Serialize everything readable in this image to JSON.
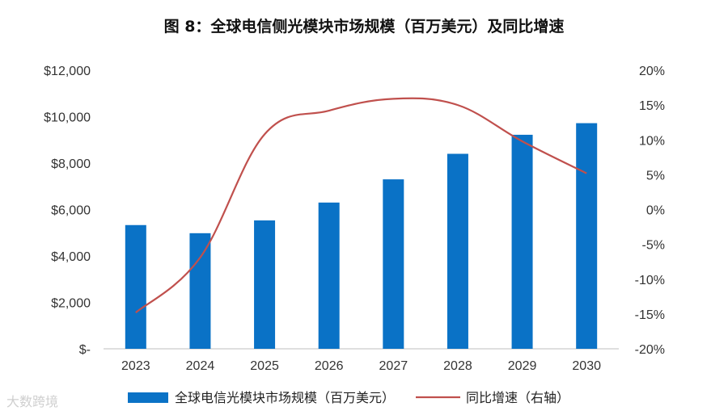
{
  "chart_data": {
    "type": "bar",
    "title": "图 8：全球电信侧光模块市场规模（百万美元）及同比增速",
    "categories": [
      "2023",
      "2024",
      "2025",
      "2026",
      "2027",
      "2028",
      "2029",
      "2030"
    ],
    "series": [
      {
        "name": "全球电信光模块市场规模（百万美元）",
        "type": "bar",
        "axis": "left",
        "color": "#0a72c6",
        "values": [
          5330,
          4980,
          5530,
          6300,
          7300,
          8400,
          9220,
          9720
        ]
      },
      {
        "name": "同比增速（右轴）",
        "type": "line",
        "axis": "right",
        "color": "#c0504d",
        "values": [
          -14.8,
          -6.9,
          10.8,
          14.2,
          15.9,
          15.0,
          9.8,
          5.2
        ]
      }
    ],
    "y_left": {
      "min": 0,
      "max": 12000,
      "tick_labels": [
        "$-",
        "$2,000",
        "$4,000",
        "$6,000",
        "$8,000",
        "$10,000",
        "$12,000"
      ],
      "tick_values": [
        0,
        2000,
        4000,
        6000,
        8000,
        10000,
        12000
      ]
    },
    "y_right": {
      "min": -20,
      "max": 20,
      "tick_labels": [
        "-20%",
        "-15%",
        "-10%",
        "-5%",
        "0%",
        "5%",
        "10%",
        "15%",
        "20%"
      ],
      "tick_values": [
        -20,
        -15,
        -10,
        -5,
        0,
        5,
        10,
        15,
        20
      ]
    },
    "grid": false,
    "legend_position": "bottom"
  },
  "watermark": "大数跨境"
}
